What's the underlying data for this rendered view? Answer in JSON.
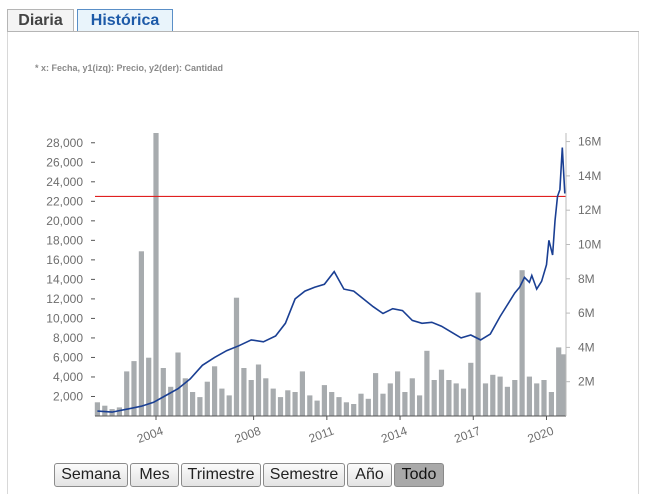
{
  "tabs": [
    "Diaria",
    "Histórica"
  ],
  "active_tab": "Histórica",
  "note": "* x: Fecha, y1(izq): Precio, y2(der): Cantidad",
  "range_buttons": [
    "Semana",
    "Mes",
    "Trimestre",
    "Semestre",
    "Año",
    "Todo"
  ],
  "active_range": "Todo",
  "colors": {
    "price_line": "#1a3f93",
    "volume_bars": "#a7abae",
    "reference_line": "#e02020",
    "axis": "#555555"
  },
  "chart_data": {
    "type": "line",
    "x_tick_labels": [
      "2004",
      "2008",
      "2011",
      "2014",
      "2017",
      "2020"
    ],
    "y_left_tick_labels": [
      "2,000",
      "4,000",
      "6,000",
      "8,000",
      "10,000",
      "12,000",
      "14,000",
      "16,000",
      "18,000",
      "20,000",
      "22,000",
      "24,000",
      "26,000",
      "28,000"
    ],
    "y_right_tick_labels": [
      "2M",
      "4M",
      "6M",
      "8M",
      "10M",
      "12M",
      "14M",
      "16M"
    ],
    "y_left_range": [
      0,
      29000
    ],
    "y_right_range": [
      0,
      16500000
    ],
    "x_range": [
      2001.5,
      2020.8
    ],
    "reference_line_price": 22500,
    "series": [
      {
        "axis": "left",
        "x": [
          2001.6,
          2002.2,
          2002.8,
          2003.4,
          2003.9,
          2004.4,
          2004.9,
          2005.4,
          2005.9,
          2006.4,
          2006.9,
          2007.4,
          2007.9,
          2008.4,
          2008.9,
          2009.3,
          2009.7,
          2010.1,
          2010.5,
          2010.9,
          2011.3,
          2011.7,
          2012.1,
          2012.5,
          2012.9,
          2013.3,
          2013.7,
          2014.1,
          2014.5,
          2014.9,
          2015.3,
          2015.7,
          2016.1,
          2016.5,
          2016.9,
          2017.3,
          2017.7,
          2018.1,
          2018.5,
          2018.7,
          2018.9,
          2019.1,
          2019.3,
          2019.4,
          2019.6,
          2019.8,
          2020.0,
          2020.1,
          2020.25,
          2020.35,
          2020.45,
          2020.55,
          2020.65,
          2020.75
        ],
        "values": [
          500,
          400,
          700,
          1000,
          1400,
          2100,
          2800,
          3800,
          5200,
          6000,
          6700,
          7200,
          7800,
          7600,
          8200,
          9500,
          12000,
          12800,
          13200,
          13500,
          14800,
          13000,
          12800,
          12000,
          11200,
          10500,
          11000,
          10800,
          9800,
          9500,
          9600,
          9200,
          8600,
          8000,
          8300,
          7800,
          8400,
          10200,
          11800,
          12600,
          13200,
          14200,
          13700,
          14400,
          13000,
          13800,
          15500,
          18000,
          16500,
          20000,
          22500,
          23200,
          27500,
          22800
        ]
      },
      {
        "axis": "right",
        "x": [
          2001.6,
          2001.9,
          2002.2,
          2002.5,
          2002.8,
          2003.1,
          2003.4,
          2003.7,
          2004.0,
          2004.3,
          2004.6,
          2004.9,
          2005.2,
          2005.5,
          2005.8,
          2006.1,
          2006.4,
          2006.7,
          2007.0,
          2007.3,
          2007.6,
          2007.9,
          2008.2,
          2008.5,
          2008.8,
          2009.1,
          2009.4,
          2009.7,
          2010.0,
          2010.3,
          2010.6,
          2010.9,
          2011.2,
          2011.5,
          2011.8,
          2012.1,
          2012.4,
          2012.7,
          2013.0,
          2013.3,
          2013.6,
          2013.9,
          2014.2,
          2014.5,
          2014.8,
          2015.1,
          2015.4,
          2015.7,
          2016.0,
          2016.3,
          2016.6,
          2016.9,
          2017.2,
          2017.5,
          2017.8,
          2018.1,
          2018.4,
          2018.7,
          2019.0,
          2019.3,
          2019.6,
          2019.9,
          2020.2,
          2020.5,
          2020.7
        ],
        "values": [
          800000,
          600000,
          400000,
          500000,
          2600000,
          3200000,
          9600000,
          3400000,
          16500000,
          2800000,
          1700000,
          3700000,
          2200000,
          1400000,
          1100000,
          2000000,
          2900000,
          1600000,
          1200000,
          6900000,
          2800000,
          2100000,
          3000000,
          2200000,
          1600000,
          1100000,
          1500000,
          1400000,
          2600000,
          1200000,
          900000,
          1800000,
          1400000,
          1100000,
          800000,
          700000,
          1300000,
          1000000,
          2500000,
          1300000,
          1900000,
          2600000,
          1400000,
          2200000,
          1200000,
          3800000,
          2100000,
          2700000,
          2100000,
          1900000,
          1600000,
          3100000,
          7200000,
          1900000,
          2400000,
          2300000,
          1700000,
          2100000,
          8500000,
          2300000,
          1900000,
          2100000,
          1400000,
          4000000,
          3600000
        ]
      }
    ]
  }
}
